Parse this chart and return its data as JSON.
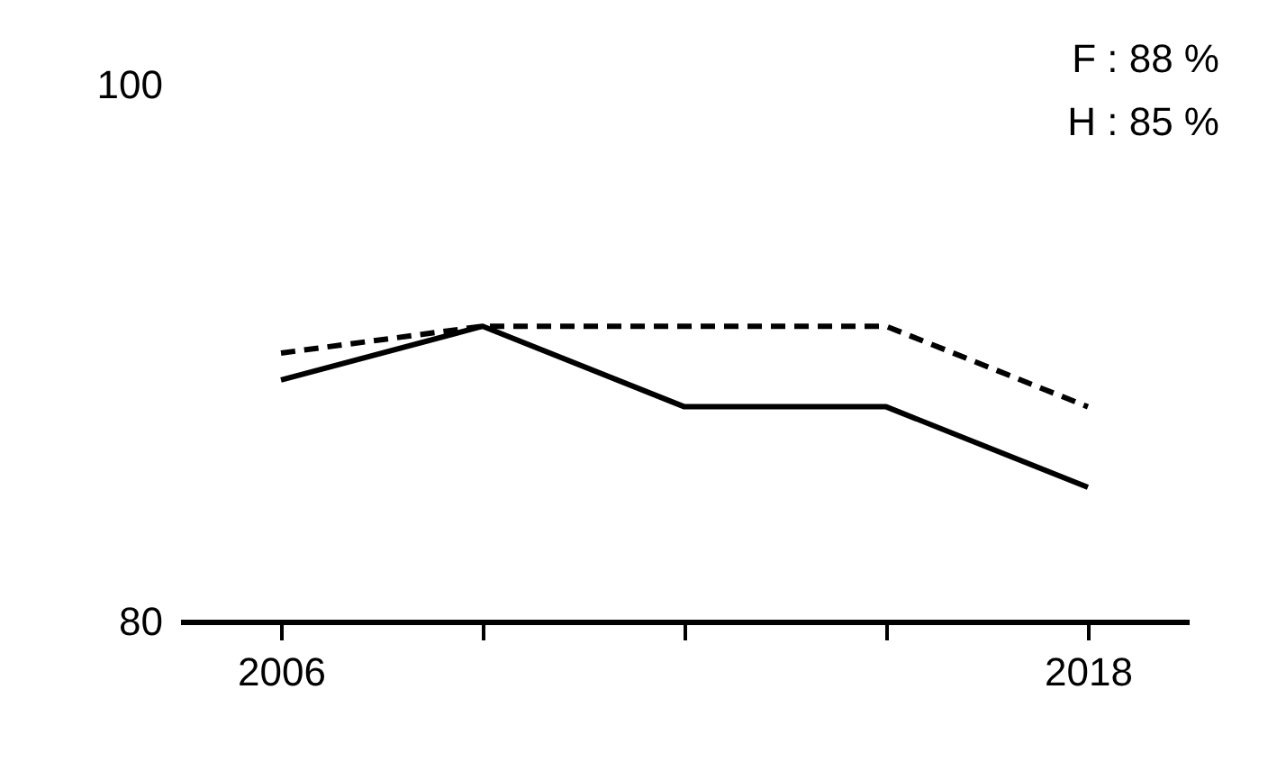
{
  "chart_data": {
    "type": "line",
    "x": [
      2006,
      2009,
      2012,
      2015,
      2018
    ],
    "series": [
      {
        "color": "#000000",
        "line_style": "dashed",
        "values": [
          90,
          91,
          91,
          91,
          88
        ]
      },
      {
        "color": "#000000",
        "line_style": "solid",
        "values": [
          89,
          91,
          88,
          88,
          85
        ]
      }
    ],
    "xlim": [
      2004.5,
      2019.5
    ],
    "xticks": [
      2006,
      {
        "value": 2009,
        "label": null
      },
      {
        "value": 2012,
        "label": null
      },
      {
        "value": 2015,
        "label": null
      },
      2018
    ],
    "ylim": [
      80,
      100
    ],
    "yticks": [
      80,
      100
    ],
    "grid": false,
    "marker": "none",
    "annotations": [
      "F : 88 %",
      "H : 85 %"
    ]
  }
}
